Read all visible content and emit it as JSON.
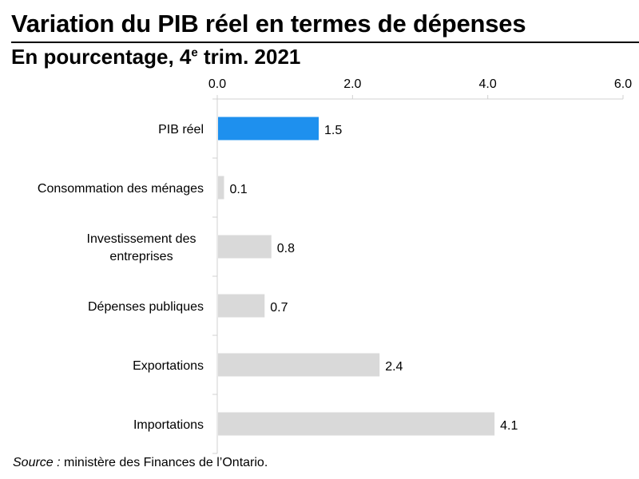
{
  "title": "Variation du PIB réel en termes de dépenses",
  "subtitle": {
    "prefix": "En pourcentage, 4",
    "sup": "e",
    "suffix": " trim. 2021"
  },
  "source": {
    "label": "Source :",
    "text": " ministère des Finances de l’Ontario."
  },
  "chart_data": {
    "type": "bar",
    "orientation": "horizontal",
    "categories": [
      "PIB réel",
      "Consommation des ménages",
      "Investissement des entreprises",
      "Dépenses publiques",
      "Exportations",
      "Importations"
    ],
    "values": [
      1.5,
      0.1,
      0.8,
      0.7,
      2.4,
      4.1
    ],
    "value_labels": [
      "1.5",
      "0.1",
      "0.8",
      "0.7",
      "2.4",
      "4.1"
    ],
    "xlim": [
      0,
      6
    ],
    "xticks": [
      0,
      2,
      4,
      6
    ],
    "xtick_labels": [
      "0.0",
      "2.0",
      "4.0",
      "6.0"
    ],
    "x_axis_position": "top",
    "grid": false,
    "colors": {
      "highlight": "#1E90EE",
      "default": "#D9D9D9",
      "axis": "#D0D0D0"
    },
    "highlight_index": 0
  }
}
